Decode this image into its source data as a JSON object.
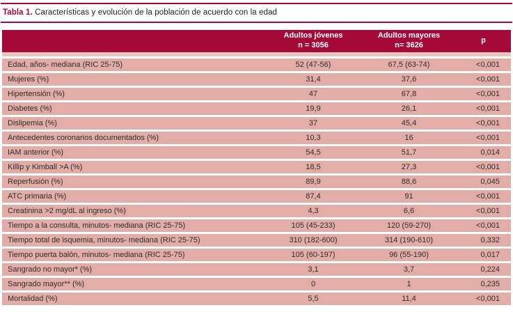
{
  "title": {
    "number": "Tabla 1.",
    "text": "Características y evolución de la población de acuerdo con la edad"
  },
  "colors": {
    "accent_red": "#A50937",
    "row_pink": "#E2ACA7",
    "header_strip_pink": "#EAC4BE",
    "header_text": "#FFFFFF",
    "body_text": "#2E2E2E"
  },
  "table": {
    "columns": {
      "young": {
        "label": "Adultos jóvenes",
        "sub": "n = 3056"
      },
      "older": {
        "label": "Adultos mayores",
        "sub": "n= 3626"
      },
      "p": {
        "label": "p"
      }
    },
    "rows": [
      {
        "label": "Edad, años- mediana (RIC 25-75)",
        "young": "52 (47-56)",
        "older": "67,5 (63-74)",
        "p": "<0,001"
      },
      {
        "label": "Mujeres (%)",
        "young": "31,4",
        "older": "37,6",
        "p": "<0,001"
      },
      {
        "label": "Hipertensión (%)",
        "young": "47",
        "older": "67,8",
        "p": "<0,001"
      },
      {
        "label": "Diabetes (%)",
        "young": "19,9",
        "older": "26,1",
        "p": "<0,001"
      },
      {
        "label": "Dislipemia (%)",
        "young": "37",
        "older": "45,4",
        "p": "<0,001"
      },
      {
        "label": "Antecedentes coronarios documentados (%)",
        "young": "10,3",
        "older": "16",
        "p": "<0,001"
      },
      {
        "label": "IAM anterior (%)",
        "young": "54,5",
        "older": "51,7",
        "p": "0,014"
      },
      {
        "label": "Killip y Kimball >A (%)",
        "young": "18,5",
        "older": "27,3",
        "p": "<0,001"
      },
      {
        "label": "Reperfusión (%)",
        "young": "89,9",
        "older": "88,6",
        "p": "0,045"
      },
      {
        "label": "ATC primaria (%)",
        "young": "87,4",
        "older": "91",
        "p": "<0,001"
      },
      {
        "label": "Creatinina >2 mg/dL al ingreso (%)",
        "young": "4,3",
        "older": "6,6",
        "p": "<0,001"
      },
      {
        "label": "Tiempo a la consulta, minutos- mediana (RIC 25-75)",
        "young": "105 (45-233)",
        "older": "120 (59-270)",
        "p": "<0,001"
      },
      {
        "label": "Tiempo total de isquemia, minutos- mediana (RIC 25-75)",
        "young": "310 (182-600)",
        "older": "314 (190-610)",
        "p": "0,332"
      },
      {
        "label": "Tiempo puerta balón, minutos- mediana (RIC 25-75)",
        "young": "105 (60-197)",
        "older": "96 (55-190)",
        "p": "0,017"
      },
      {
        "label": "Sangrado no mayor* (%)",
        "young": "3,1",
        "older": "3,7",
        "p": "0,224"
      },
      {
        "label": "Sangrado mayor** (%)",
        "young": "0",
        "older": "1",
        "p": "0,235"
      },
      {
        "label": "Mortalidad (%)",
        "young": "5,5",
        "older": "11,4",
        "p": "<0,001"
      }
    ]
  }
}
